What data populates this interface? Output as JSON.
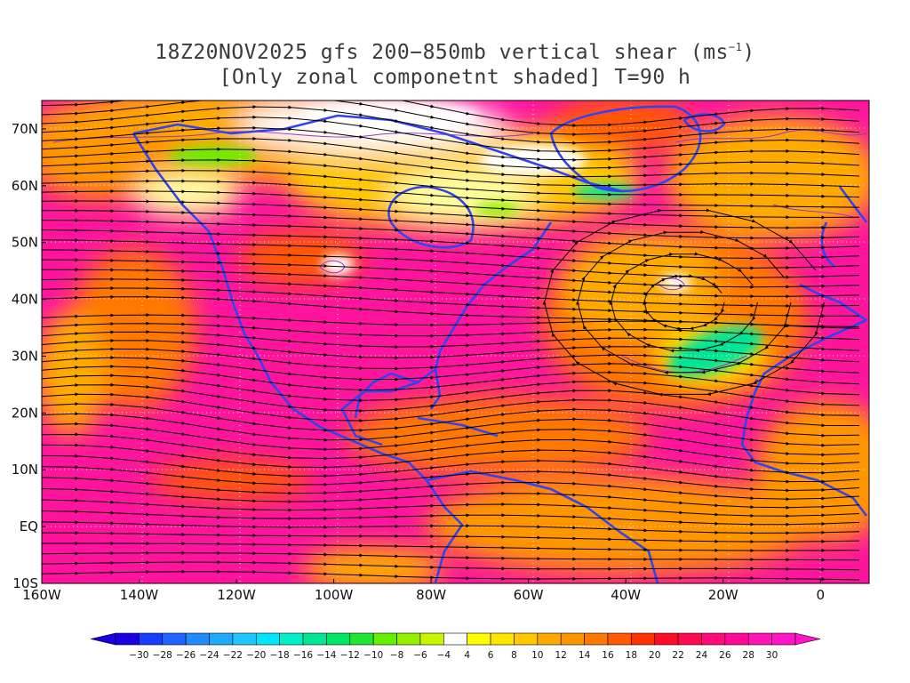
{
  "title": {
    "line1_prefix": "18Z20NOV2025 gfs 200−850mb vertical shear (ms",
    "line1_sup": "−1",
    "line1_suffix": ")",
    "line2": "[Only zonal componetnt shaded] T=90 h"
  },
  "map": {
    "lon_range": [
      -160,
      10
    ],
    "lat_range": [
      -10,
      75
    ],
    "lat_ticks": [
      "70N",
      "60N",
      "50N",
      "40N",
      "30N",
      "20N",
      "10N",
      "EQ",
      "10S"
    ],
    "lat_values": [
      70,
      60,
      50,
      40,
      30,
      20,
      10,
      0,
      -10
    ],
    "lon_ticks": [
      "160W",
      "140W",
      "120W",
      "100W",
      "80W",
      "60W",
      "40W",
      "20W",
      "0"
    ],
    "lon_values": [
      -160,
      -140,
      -120,
      -100,
      -80,
      -60,
      -40,
      -20,
      0
    ],
    "coastline_color": "#3344ee",
    "contour_color": "#9933cc",
    "streamline_color": "#000000"
  },
  "colorbar": {
    "labels": [
      "−30",
      "−28",
      "−26",
      "−24",
      "−22",
      "−20",
      "−18",
      "−16",
      "−14",
      "−12",
      "−10",
      "−8",
      "−6",
      "−4",
      "4",
      "6",
      "8",
      "10",
      "12",
      "14",
      "16",
      "18",
      "20",
      "22",
      "24",
      "26",
      "28",
      "30"
    ],
    "colors": [
      "#1a00e0",
      "#1a3cff",
      "#1e64ff",
      "#1e8cff",
      "#1eaaff",
      "#1ec8ff",
      "#00e6ff",
      "#00f0c8",
      "#00e696",
      "#00e664",
      "#1ee632",
      "#64f000",
      "#96f000",
      "#c8f500",
      "#ffffff",
      "#ffff00",
      "#ffe600",
      "#ffc800",
      "#ffaa00",
      "#ff9600",
      "#ff7800",
      "#ff5a00",
      "#ff3200",
      "#ff0a28",
      "#ff0a50",
      "#ff0a78",
      "#ff0a96",
      "#ff14b4",
      "#ff14c8"
    ]
  }
}
